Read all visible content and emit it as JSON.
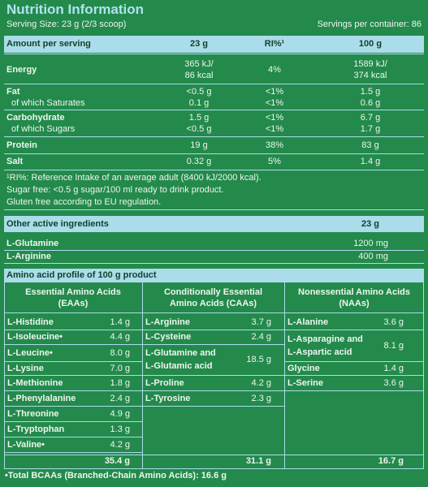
{
  "header": {
    "title": "Nutrition Information",
    "serving_size": "Serving Size: 23 g (2/3 scoop)",
    "servings_per_container": "Servings per container: 86"
  },
  "nutrition": {
    "columns": [
      "Amount per serving",
      "23 g",
      "RI%¹",
      "100 g"
    ],
    "rows": [
      [
        [
          "Energy"
        ],
        [
          "365 kJ/",
          "86 kcal"
        ],
        [
          "4%"
        ],
        [
          "1589 kJ/",
          "374 kcal"
        ]
      ],
      [
        [
          "Fat",
          "of which Saturates"
        ],
        [
          "<0.5 g",
          "0.1 g"
        ],
        [
          "<1%",
          "<1%"
        ],
        [
          "1.5 g",
          "0.6 g"
        ]
      ],
      [
        [
          "Carbohydrate",
          "of which Sugars"
        ],
        [
          "1.5 g",
          "<0.5 g"
        ],
        [
          "<1%",
          "<1%"
        ],
        [
          "6.7 g",
          "1.7 g"
        ]
      ],
      [
        [
          "Protein"
        ],
        [
          "19 g"
        ],
        [
          "38%"
        ],
        [
          "83 g"
        ]
      ],
      [
        [
          "Salt"
        ],
        [
          "0.32 g"
        ],
        [
          "5%"
        ],
        [
          "1.4 g"
        ]
      ]
    ],
    "notes": [
      "¹RI%: Reference Intake of an average adult (8400 kJ/2000 kcal).",
      "Sugar free: <0.5 g sugar/100 ml ready to drink product.",
      "Gluten free according to EU regulation."
    ]
  },
  "other_ingredients": {
    "columns": [
      "Other active ingredients",
      "23 g"
    ],
    "rows": [
      [
        "L-Glutamine",
        "1200 mg"
      ],
      [
        "L-Arginine",
        "400 mg"
      ]
    ]
  },
  "amino_acids": {
    "title": "Amino acid profile of 100 g product",
    "columns": [
      {
        "title": [
          "Essential Amino Acids",
          "(EAAs)"
        ],
        "items": [
          {
            "name": [
              "L-Histidine"
            ],
            "value": "1.4 g"
          },
          {
            "name": [
              "L-Isoleucine•"
            ],
            "value": "4.4 g"
          },
          {
            "name": [
              "L-Leucine•"
            ],
            "value": "8.0 g"
          },
          {
            "name": [
              "L-Lysine"
            ],
            "value": "7.0 g"
          },
          {
            "name": [
              "L-Methionine"
            ],
            "value": "1.8 g"
          },
          {
            "name": [
              "L-Phenylalanine"
            ],
            "value": "2.4 g"
          },
          {
            "name": [
              "L-Threonine"
            ],
            "value": "4.9 g"
          },
          {
            "name": [
              "L-Tryptophan"
            ],
            "value": "1.3 g"
          },
          {
            "name": [
              "L-Valine•"
            ],
            "value": "4.2 g"
          }
        ],
        "total": "35.4 g"
      },
      {
        "title": [
          "Conditionally Essential",
          "Amino Acids (CAAs)"
        ],
        "items": [
          {
            "name": [
              "L-Arginine"
            ],
            "value": "3.7 g"
          },
          {
            "name": [
              "L-Cysteine"
            ],
            "value": "2.4 g"
          },
          {
            "name": [
              "L-Glutamine and",
              "L-Glutamic acid"
            ],
            "value": "18.5 g"
          },
          {
            "name": [
              "L-Proline"
            ],
            "value": "4.2 g"
          },
          {
            "name": [
              "L-Tyrosine"
            ],
            "value": "2.3 g"
          }
        ],
        "total": "31.1 g"
      },
      {
        "title": [
          "Nonessential Amino Acids",
          "(NAAs)"
        ],
        "items": [
          {
            "name": [
              "L-Alanine"
            ],
            "value": "3.6 g"
          },
          {
            "name": [
              "L-Asparagine and",
              "L-Aspartic acid"
            ],
            "value": "8.1 g"
          },
          {
            "name": [
              "Glycine"
            ],
            "value": "1.4 g"
          },
          {
            "name": [
              "L-Serine"
            ],
            "value": "3.6 g"
          }
        ],
        "total": "16.7 g"
      }
    ],
    "footnote": "•Total BCAAs (Branched-Chain Amino Acids): 16.6 g"
  }
}
